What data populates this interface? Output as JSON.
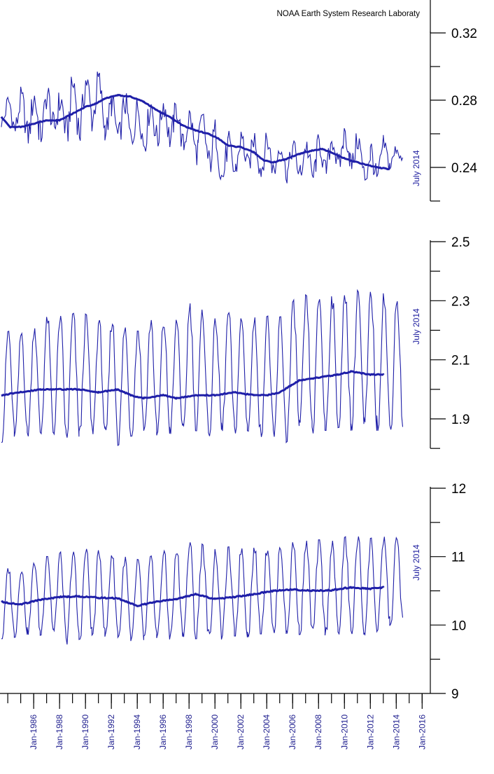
{
  "credit": "NOAA Earth System Research Laboraty",
  "colors": {
    "series": "#1f1fa8",
    "axis": "#000000",
    "background": "#ffffff"
  },
  "chart_data": [
    {
      "type": "line",
      "panel": "top",
      "ylim": [
        0.22,
        0.33
      ],
      "yticks_labeled": [
        "0.32",
        "0.28",
        "0.24"
      ],
      "ytick_values": [
        0.32,
        0.28,
        0.24
      ],
      "yticks_minor": [
        0.3,
        0.26,
        0.22
      ],
      "date_note": "July 2014",
      "grid": false,
      "series": [
        {
          "kind": "monthly",
          "x": [
            1983.5,
            1985.9,
            1986.4,
            1987.6,
            1988.0,
            1988.4,
            1989.2,
            1989.6,
            1990.5,
            1991.0,
            1991.5,
            1992.0,
            1993.3,
            1994.4,
            1995.6,
            1996.8,
            1997.6,
            1998.7,
            1999.6,
            2000.5,
            2001.0,
            2001.6,
            2002.4,
            2003.6,
            2004.4,
            2005.6,
            2006.6,
            2007.8,
            2008.6,
            2009.9,
            2010.4,
            2011.5,
            2012.0,
            2013.0,
            2013.5,
            2014.0,
            2014.5
          ],
          "min": [
            0.262,
            0.248,
            0.25,
            0.255,
            0.245,
            0.249,
            0.252,
            0.25,
            0.258,
            0.262,
            0.255,
            0.25,
            0.248,
            0.246,
            0.248,
            0.249,
            0.245,
            0.24,
            0.232,
            0.225,
            0.223,
            0.231,
            0.234,
            0.231,
            0.231,
            0.23,
            0.23,
            0.226,
            0.231,
            0.234,
            0.236,
            0.228,
            0.218,
            0.232,
            0.236,
            0.238,
            0.24
          ],
          "max": [
            0.283,
            0.292,
            0.289,
            0.295,
            0.288,
            0.296,
            0.302,
            0.299,
            0.306,
            0.301,
            0.29,
            0.286,
            0.287,
            0.283,
            0.288,
            0.284,
            0.279,
            0.277,
            0.275,
            0.265,
            0.262,
            0.263,
            0.265,
            0.264,
            0.262,
            0.259,
            0.258,
            0.262,
            0.262,
            0.267,
            0.266,
            0.262,
            0.258,
            0.26,
            0.258,
            0.255,
            0.253
          ]
        },
        {
          "kind": "trend",
          "x": [
            1983.5,
            1984.2,
            1985.0,
            1986.0,
            1987.0,
            1988.0,
            1989.0,
            1990.0,
            1990.8,
            1991.5,
            1992.5,
            1993.5,
            1994.5,
            1995.5,
            1996.5,
            1997.5,
            1998.5,
            1999.5,
            2000.3,
            2001.0,
            2002.0,
            2003.0,
            2003.8,
            2004.5,
            2005.5,
            2006.5,
            2007.5,
            2008.3,
            2009.0,
            2009.8,
            2010.5,
            2011.5,
            2012.5,
            2013.5
          ],
          "y": [
            0.27,
            0.264,
            0.264,
            0.266,
            0.268,
            0.268,
            0.272,
            0.276,
            0.278,
            0.281,
            0.283,
            0.282,
            0.279,
            0.274,
            0.27,
            0.265,
            0.262,
            0.26,
            0.257,
            0.253,
            0.252,
            0.249,
            0.244,
            0.243,
            0.245,
            0.248,
            0.25,
            0.251,
            0.249,
            0.246,
            0.244,
            0.242,
            0.24,
            0.239
          ]
        }
      ]
    },
    {
      "type": "line",
      "panel": "middle",
      "ylim": [
        1.8,
        2.5
      ],
      "yticks_labeled": [
        "2.5",
        "2.3",
        "2.1",
        "1.9"
      ],
      "ytick_values": [
        2.5,
        2.3,
        2.1,
        1.9
      ],
      "yticks_minor": [
        2.4,
        2.2,
        2.0,
        1.8
      ],
      "date_note": "July 2014",
      "grid": false,
      "series": [
        {
          "kind": "monthly",
          "x": [
            1983.5,
            1984.5,
            1985.5,
            1986.5,
            1987.5,
            1988.5,
            1989.5,
            1990.5,
            1991.5,
            1992.5,
            1993.5,
            1994.5,
            1995.5,
            1996.5,
            1997.5,
            1998.5,
            1999.5,
            2000.5,
            2001.5,
            2002.5,
            2003.5,
            2004.5,
            2005.5,
            2006.5,
            2007.5,
            2008.5,
            2009.5,
            2010.5,
            2011.5,
            2012.5,
            2013.5,
            2014.5
          ],
          "min": [
            1.82,
            1.84,
            1.84,
            1.85,
            1.85,
            1.83,
            1.84,
            1.85,
            1.83,
            1.81,
            1.84,
            1.86,
            1.84,
            1.85,
            1.84,
            1.86,
            1.84,
            1.86,
            1.85,
            1.86,
            1.84,
            1.83,
            1.82,
            1.86,
            1.85,
            1.86,
            1.87,
            1.86,
            1.87,
            1.86,
            1.86,
            1.87
          ],
          "max": [
            2.22,
            2.18,
            2.2,
            2.23,
            2.26,
            2.24,
            2.27,
            2.24,
            2.23,
            2.25,
            2.18,
            2.23,
            2.24,
            2.22,
            2.25,
            2.32,
            2.22,
            2.26,
            2.26,
            2.22,
            2.26,
            2.24,
            2.25,
            2.34,
            2.3,
            2.33,
            2.3,
            2.35,
            2.33,
            2.33,
            2.32,
            2.3
          ]
        },
        {
          "kind": "trend",
          "x": [
            1983.5,
            1985.0,
            1986.5,
            1988.0,
            1989.5,
            1991.0,
            1992.5,
            1993.5,
            1994.5,
            1996.0,
            1997.0,
            1998.5,
            2000.0,
            2001.5,
            2003.0,
            2004.0,
            2005.0,
            2006.5,
            2008.0,
            2009.5,
            2010.5,
            2012.0,
            2013.0
          ],
          "y": [
            1.98,
            1.99,
            2.0,
            2.0,
            2.0,
            1.99,
            2.0,
            1.98,
            1.97,
            1.98,
            1.97,
            1.98,
            1.98,
            1.99,
            1.98,
            1.98,
            1.99,
            2.03,
            2.04,
            2.05,
            2.06,
            2.05,
            2.05
          ]
        }
      ]
    },
    {
      "type": "line",
      "panel": "bottom",
      "ylim": [
        9,
        12
      ],
      "yticks_labeled": [
        "12",
        "11",
        "10",
        "9"
      ],
      "ytick_values": [
        12,
        11,
        10,
        9
      ],
      "yticks_minor": [
        11.5,
        10.5,
        9.5
      ],
      "date_note": "July 2014",
      "grid": false,
      "series": [
        {
          "kind": "monthly",
          "x": [
            1983.5,
            1984.5,
            1985.5,
            1986.5,
            1987.5,
            1988.5,
            1989.5,
            1990.5,
            1991.5,
            1992.5,
            1993.5,
            1994.5,
            1995.5,
            1996.5,
            1997.5,
            1998.5,
            1999.5,
            2000.5,
            2001.5,
            2002.5,
            2003.5,
            2004.5,
            2005.5,
            2006.5,
            2007.5,
            2008.5,
            2009.5,
            2010.5,
            2011.5,
            2012.5,
            2013.5,
            2014.5
          ],
          "min": [
            9.8,
            9.82,
            9.86,
            9.85,
            9.9,
            9.71,
            9.78,
            9.84,
            9.83,
            9.82,
            9.71,
            9.78,
            9.81,
            9.79,
            9.83,
            9.8,
            9.81,
            9.79,
            9.84,
            9.82,
            9.87,
            9.86,
            9.87,
            9.86,
            9.88,
            9.85,
            9.87,
            9.87,
            9.86,
            9.86,
            9.99,
            10.0
          ],
          "max": [
            10.8,
            10.86,
            10.84,
            11.02,
            11.08,
            11.06,
            11.1,
            11.12,
            11.08,
            11.02,
            10.98,
            10.94,
            11.06,
            11.1,
            11.08,
            11.3,
            11.1,
            11.12,
            11.16,
            11.12,
            11.14,
            11.18,
            11.2,
            11.22,
            11.24,
            11.25,
            11.22,
            11.34,
            11.26,
            11.28,
            11.3,
            11.25
          ]
        },
        {
          "kind": "trend",
          "x": [
            1983.5,
            1985.0,
            1986.5,
            1988.0,
            1989.5,
            1991.0,
            1992.5,
            1994.0,
            1995.5,
            1997.0,
            1998.5,
            2000.0,
            2001.5,
            2003.0,
            2004.5,
            2006.0,
            2007.5,
            2009.0,
            2010.5,
            2012.0,
            2013.0
          ],
          "y": [
            10.34,
            10.3,
            10.37,
            10.41,
            10.42,
            10.4,
            10.39,
            10.28,
            10.34,
            10.38,
            10.45,
            10.38,
            10.41,
            10.45,
            10.5,
            10.52,
            10.5,
            10.51,
            10.55,
            10.53,
            10.55
          ]
        }
      ]
    }
  ],
  "x_axis": {
    "type": "date",
    "tick_labels": [
      "Jan-1986",
      "Jan-1988",
      "Jan-1990",
      "Jan-1992",
      "Jan-1994",
      "Jan-1996",
      "Jan-1998",
      "Jan-2000",
      "Jan-2002",
      "Jan-2004",
      "Jan-2006",
      "Jan-2008",
      "Jan-2010",
      "Jan-2012",
      "Jan-2014",
      "Jan-2016"
    ],
    "tick_years": [
      1986,
      1988,
      1990,
      1992,
      1994,
      1996,
      1998,
      2000,
      2002,
      2004,
      2006,
      2008,
      2010,
      2012,
      2014,
      2016
    ],
    "minor_tick_interval_years": 1,
    "xlim": [
      1983.4,
      2016.2
    ]
  }
}
